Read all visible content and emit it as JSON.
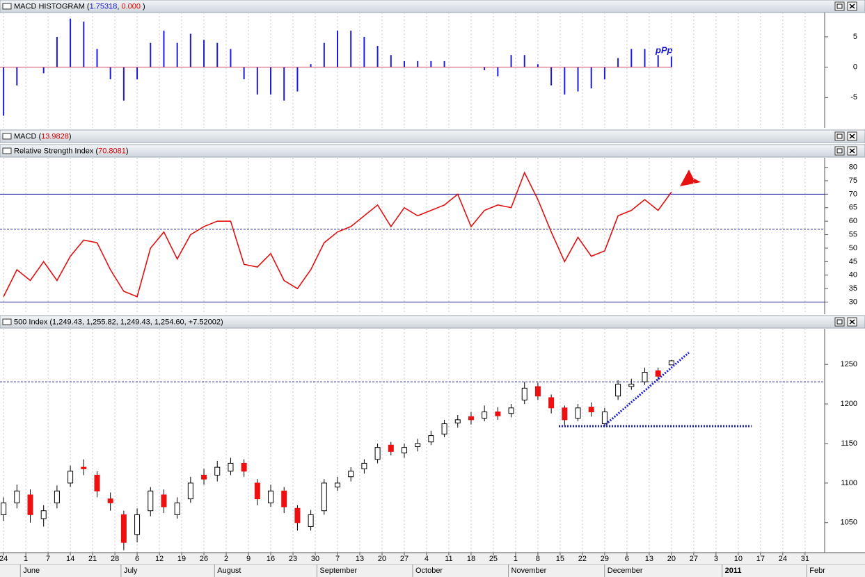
{
  "chart_data": [
    {
      "type": "bar",
      "title_parts": [
        "MACD HISTOGRAM (",
        "1.75318",
        ", ",
        "0.000",
        " )"
      ],
      "title_colors": [
        "#000",
        "#1515d0",
        "#000",
        "#e00000",
        "#000"
      ],
      "x": [
        0,
        3,
        6,
        9,
        12,
        15,
        18,
        21,
        24,
        27,
        30,
        33,
        36,
        39,
        42,
        45,
        48,
        51,
        54,
        57,
        60,
        63,
        66,
        69,
        72,
        75,
        78,
        81,
        84,
        87,
        90,
        93,
        96,
        99,
        102,
        105,
        108,
        111,
        114,
        117,
        120,
        123,
        126,
        129,
        132,
        135,
        138,
        141,
        144,
        147,
        150
      ],
      "values": [
        -8,
        -3,
        0,
        -1,
        5,
        8,
        7.5,
        3,
        -2,
        -5.5,
        -2,
        4,
        6,
        4,
        5.5,
        4.5,
        4,
        3,
        -2,
        -4.5,
        -4.5,
        -5.5,
        -4,
        0.5,
        4,
        6,
        6,
        5,
        3.5,
        2,
        1,
        1,
        1,
        1,
        0,
        0,
        -0.5,
        -1.5,
        2,
        2,
        0.5,
        -3,
        -4.5,
        -4,
        -3.5,
        -2,
        1.5,
        3,
        3,
        2,
        1.75318
      ],
      "color": "#1a1ae0",
      "baseline_color": "#d04060",
      "annotation": "pPp",
      "ylim": [
        -10,
        9
      ],
      "yticks": [
        -5,
        0,
        5
      ]
    },
    {
      "type": "line",
      "title_parts": [
        "Relative Strength Index (",
        "70.8081",
        ")"
      ],
      "title_colors": [
        "#000",
        "#e00000",
        "#000"
      ],
      "x": [
        0,
        3,
        6,
        9,
        12,
        15,
        18,
        21,
        24,
        27,
        30,
        33,
        36,
        39,
        42,
        45,
        48,
        51,
        54,
        57,
        60,
        63,
        66,
        69,
        72,
        75,
        78,
        81,
        84,
        87,
        90,
        93,
        96,
        99,
        102,
        105,
        108,
        111,
        114,
        117,
        120,
        123,
        126,
        129,
        132,
        135,
        138,
        141,
        144,
        147,
        150
      ],
      "values": [
        32,
        42,
        38,
        45,
        38,
        47,
        53,
        52,
        42,
        34,
        32,
        50,
        56,
        46,
        55,
        58,
        60,
        60,
        44,
        43,
        48,
        38,
        35,
        42,
        52,
        56,
        58,
        62,
        66,
        58,
        65,
        62,
        64,
        66,
        70,
        58,
        64,
        66,
        65,
        78,
        68,
        56,
        45,
        54,
        47,
        49,
        62,
        64,
        68,
        64,
        70.8081
      ],
      "color": "#e01010",
      "hlines": [
        {
          "value": 70,
          "color": "#2020a0",
          "dash": false
        },
        {
          "value": 57,
          "color": "#2020a0",
          "dash": true
        },
        {
          "value": 30,
          "color": "#2020a0",
          "dash": false
        }
      ],
      "ylim": [
        25.5,
        83.5
      ],
      "yticks": [
        30,
        35,
        40,
        45,
        50,
        55,
        60,
        65,
        70,
        75,
        80
      ]
    },
    {
      "type": "candlestick",
      "title_parts": [
        "500 Index (1,249.43, 1,255.82, 1,249.43, 1,254.60, +7.52002)"
      ],
      "title_colors": [
        "#000"
      ],
      "x": [
        0,
        3,
        6,
        9,
        12,
        15,
        18,
        21,
        24,
        27,
        30,
        33,
        36,
        39,
        42,
        45,
        48,
        51,
        54,
        57,
        60,
        63,
        66,
        69,
        72,
        75,
        78,
        81,
        84,
        87,
        90,
        93,
        96,
        99,
        102,
        105,
        108,
        111,
        114,
        117,
        120,
        123,
        126,
        129,
        132,
        135,
        138,
        141,
        144,
        147,
        150
      ],
      "open": [
        1060,
        1075,
        1085,
        1055,
        1075,
        1100,
        1120,
        1110,
        1080,
        1060,
        1035,
        1065,
        1085,
        1060,
        1080,
        1110,
        1110,
        1115,
        1125,
        1100,
        1075,
        1090,
        1068,
        1045,
        1065,
        1095,
        1108,
        1118,
        1130,
        1148,
        1138,
        1146,
        1152,
        1162,
        1176,
        1184,
        1182,
        1190,
        1188,
        1205,
        1222,
        1208,
        1195,
        1182,
        1196,
        1175,
        1210,
        1222,
        1228,
        1242,
        1249.43
      ],
      "high": [
        1082,
        1098,
        1092,
        1072,
        1097,
        1122,
        1130,
        1115,
        1088,
        1065,
        1068,
        1095,
        1092,
        1082,
        1108,
        1118,
        1128,
        1132,
        1130,
        1105,
        1098,
        1095,
        1072,
        1066,
        1105,
        1108,
        1120,
        1130,
        1150,
        1152,
        1150,
        1156,
        1166,
        1180,
        1186,
        1190,
        1198,
        1196,
        1200,
        1228,
        1227,
        1212,
        1198,
        1200,
        1202,
        1195,
        1230,
        1232,
        1246,
        1246,
        1255.82
      ],
      "low": [
        1052,
        1068,
        1050,
        1045,
        1068,
        1095,
        1110,
        1082,
        1065,
        1015,
        1025,
        1058,
        1062,
        1055,
        1075,
        1098,
        1102,
        1110,
        1108,
        1072,
        1070,
        1062,
        1040,
        1040,
        1060,
        1090,
        1102,
        1112,
        1125,
        1135,
        1132,
        1140,
        1148,
        1158,
        1170,
        1174,
        1178,
        1180,
        1183,
        1200,
        1205,
        1188,
        1172,
        1178,
        1184,
        1172,
        1205,
        1218,
        1224,
        1230,
        1249.43
      ],
      "close": [
        1075,
        1090,
        1060,
        1065,
        1090,
        1115,
        1118,
        1090,
        1075,
        1025,
        1060,
        1090,
        1070,
        1075,
        1100,
        1105,
        1120,
        1125,
        1115,
        1080,
        1090,
        1070,
        1050,
        1060,
        1100,
        1100,
        1115,
        1125,
        1145,
        1140,
        1145,
        1150,
        1160,
        1175,
        1180,
        1180,
        1190,
        1185,
        1195,
        1220,
        1210,
        1195,
        1180,
        1195,
        1190,
        1190,
        1225,
        1225,
        1240,
        1235,
        1254.6
      ],
      "up_color": "#ffffff",
      "down_color": "#ee1010",
      "hlines": [
        {
          "value": 1228,
          "color": "#2020a0",
          "dash": true
        }
      ],
      "trendlines": [
        {
          "x": [
            124.7,
            168
          ],
          "y": [
            1172,
            1172
          ],
          "color": "#1a1ad0"
        },
        {
          "x": [
            134.8,
            153.9
          ],
          "y": [
            1172,
            1265
          ],
          "color": "#1a1ad0"
        }
      ],
      "xlim": [
        -0.8,
        184.4
      ],
      "ylim": [
        1012,
        1295
      ],
      "yticks": [
        1050,
        1100,
        1150,
        1200,
        1250
      ],
      "xticks": [
        {
          "value": 0,
          "label": "24"
        },
        {
          "value": 5,
          "label": "1"
        },
        {
          "value": 10,
          "label": "7"
        },
        {
          "value": 15,
          "label": "14"
        },
        {
          "value": 20,
          "label": "21"
        },
        {
          "value": 25,
          "label": "28"
        },
        {
          "value": 30,
          "label": "6"
        },
        {
          "value": 35,
          "label": "12"
        },
        {
          "value": 40,
          "label": "19"
        },
        {
          "value": 45,
          "label": "26"
        },
        {
          "value": 50,
          "label": "2"
        },
        {
          "value": 55,
          "label": "9"
        },
        {
          "value": 60,
          "label": "16"
        },
        {
          "value": 65,
          "label": "23"
        },
        {
          "value": 70,
          "label": "30"
        },
        {
          "value": 75,
          "label": "7"
        },
        {
          "value": 80,
          "label": "13"
        },
        {
          "value": 85,
          "label": "20"
        },
        {
          "value": 90,
          "label": "27"
        },
        {
          "value": 95,
          "label": "4"
        },
        {
          "value": 100,
          "label": "11"
        },
        {
          "value": 105,
          "label": "18"
        },
        {
          "value": 110,
          "label": "25"
        },
        {
          "value": 115,
          "label": "1"
        },
        {
          "value": 120,
          "label": "8"
        },
        {
          "value": 125,
          "label": "15"
        },
        {
          "value": 130,
          "label": "22"
        },
        {
          "value": 135,
          "label": "29"
        },
        {
          "value": 140,
          "label": "6"
        },
        {
          "value": 145,
          "label": "13"
        },
        {
          "value": 150,
          "label": "20"
        },
        {
          "value": 155,
          "label": "27"
        },
        {
          "value": 160,
          "label": "3"
        },
        {
          "value": 165,
          "label": "10"
        },
        {
          "value": 170,
          "label": "17"
        },
        {
          "value": 175,
          "label": "24"
        },
        {
          "value": 180,
          "label": "31"
        }
      ],
      "month_ticks": [
        {
          "value": 4.4,
          "label": "June"
        },
        {
          "value": 27,
          "label": "July"
        },
        {
          "value": 48,
          "label": "August"
        },
        {
          "value": 71,
          "label": "September"
        },
        {
          "value": 92.5,
          "label": "October"
        },
        {
          "value": 114,
          "label": "November"
        },
        {
          "value": 135.6,
          "label": "December"
        },
        {
          "value": 162,
          "label": "2011"
        },
        {
          "value": 181,
          "label": "Febr"
        }
      ]
    }
  ],
  "collapsed": {
    "title_parts": [
      "MACD (",
      "13.9828",
      ")"
    ],
    "title_colors": [
      "#000",
      "#e00000",
      "#000"
    ]
  }
}
